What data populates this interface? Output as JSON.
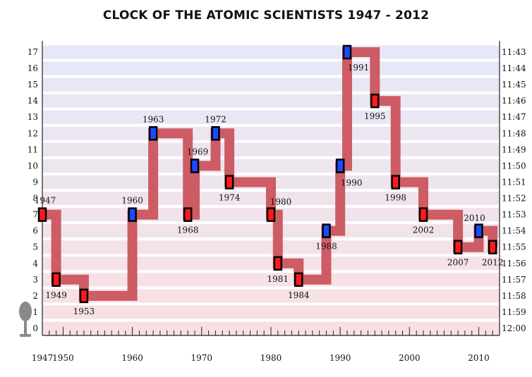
{
  "chart_data": {
    "type": "line",
    "title": "CLOCK OF THE ATOMIC SCIENTISTS 1947 - 2012",
    "xlabel": "",
    "ylabel": "",
    "xlim": [
      1947,
      2013
    ],
    "ylim": [
      0,
      17
    ],
    "left_ticks": [
      "0",
      "1",
      "2",
      "3",
      "4",
      "5",
      "6",
      "7",
      "8",
      "9",
      "10",
      "11",
      "12",
      "13",
      "14",
      "15",
      "16",
      "17"
    ],
    "right_ticks": [
      "12:00",
      "11:59",
      "11:58",
      "11:57",
      "11:56",
      "11:55",
      "11:54",
      "11:53",
      "11:52",
      "11:51",
      "11:50",
      "11:49",
      "11:48",
      "11:47",
      "11:46",
      "11:45",
      "11:44",
      "11:43"
    ],
    "x_ticks": [
      1947,
      1950,
      1960,
      1970,
      1980,
      1990,
      2000,
      2010
    ],
    "x_tick_labels": [
      "1947",
      "1950",
      "1960",
      "1970",
      "1980",
      "1990",
      "2000",
      "2010"
    ],
    "series": [
      {
        "points": [
          {
            "year": 1947,
            "minutes": 7,
            "label": "1947",
            "marker": "red"
          },
          {
            "year": 1949,
            "minutes": 3,
            "label": "1949",
            "marker": "red"
          },
          {
            "year": 1953,
            "minutes": 2,
            "label": "1953",
            "marker": "red"
          },
          {
            "year": 1960,
            "minutes": 7,
            "label": "1960",
            "marker": "blue"
          },
          {
            "year": 1963,
            "minutes": 12,
            "label": "1963",
            "marker": "blue"
          },
          {
            "year": 1968,
            "minutes": 7,
            "label": "1968",
            "marker": "red"
          },
          {
            "year": 1969,
            "minutes": 10,
            "label": "1969",
            "marker": "blue"
          },
          {
            "year": 1972,
            "minutes": 12,
            "label": "1972",
            "marker": "blue"
          },
          {
            "year": 1974,
            "minutes": 9,
            "label": "1974",
            "marker": "red"
          },
          {
            "year": 1980,
            "minutes": 7,
            "label": "1980",
            "marker": "red"
          },
          {
            "year": 1981,
            "minutes": 4,
            "label": "1981",
            "marker": "red"
          },
          {
            "year": 1984,
            "minutes": 3,
            "label": "1984",
            "marker": "red"
          },
          {
            "year": 1988,
            "minutes": 6,
            "label": "1988",
            "marker": "blue"
          },
          {
            "year": 1990,
            "minutes": 10,
            "label": "1990",
            "marker": "blue"
          },
          {
            "year": 1991,
            "minutes": 17,
            "label": "1991",
            "marker": "blue"
          },
          {
            "year": 1995,
            "minutes": 14,
            "label": "1995",
            "marker": "red"
          },
          {
            "year": 1998,
            "minutes": 9,
            "label": "1998",
            "marker": "red"
          },
          {
            "year": 2002,
            "minutes": 7,
            "label": "2002",
            "marker": "red"
          },
          {
            "year": 2007,
            "minutes": 5,
            "label": "2007",
            "marker": "red"
          },
          {
            "year": 2010,
            "minutes": 6,
            "label": "2010",
            "marker": "blue"
          },
          {
            "year": 2012,
            "minutes": 5,
            "label": "2012",
            "marker": "red"
          }
        ]
      }
    ],
    "colors": {
      "step_line": "#cd5c64",
      "marker_red": "#ff1a1a",
      "marker_blue": "#1a4cff",
      "marker_border": "#000000",
      "band_top": "#e6e8f8",
      "band_bottom": "#f8e0e2",
      "midnight": "#ff0000",
      "pendulum": "#8a8a8a"
    },
    "grid": true,
    "legend": "none"
  }
}
